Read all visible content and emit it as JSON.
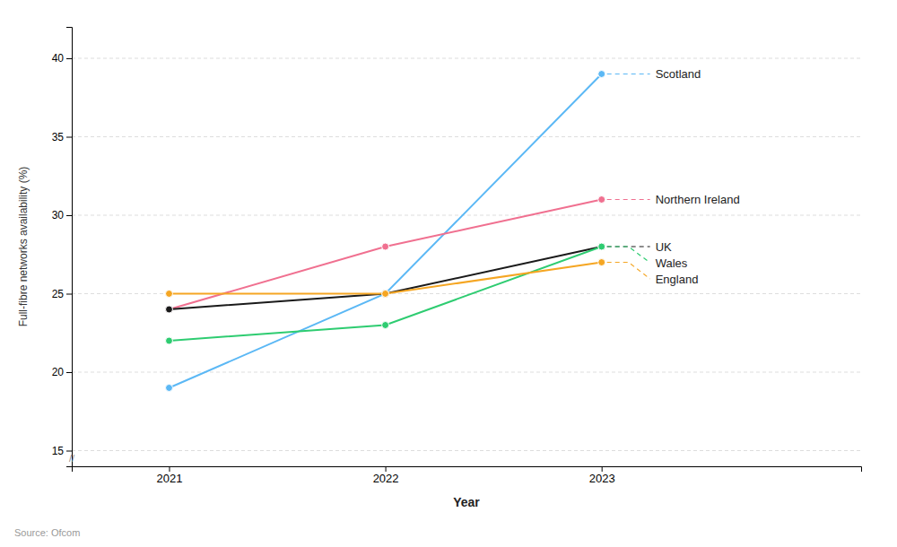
{
  "chart_data": {
    "type": "line",
    "x": [
      2021,
      2022,
      2023
    ],
    "series": [
      {
        "name": "Scotland",
        "color": "#5BB8F5",
        "values": [
          19,
          25,
          39
        ]
      },
      {
        "name": "Northern Ireland",
        "color": "#F07090",
        "values": [
          24,
          28,
          31
        ]
      },
      {
        "name": "UK",
        "color": "#1A1A1A",
        "values": [
          24,
          25,
          28
        ]
      },
      {
        "name": "Wales",
        "color": "#2ECC71",
        "values": [
          22,
          23,
          28
        ]
      },
      {
        "name": "England",
        "color": "#F5A623",
        "values": [
          25,
          25,
          27
        ]
      }
    ],
    "xlabel": "Year",
    "ylabel": "Full-fibre networks availability (%)",
    "xlim": [
      2020.55,
      2024.2
    ],
    "xticks": [
      2021,
      2022,
      2023
    ],
    "ylim": [
      14.0,
      42.0
    ],
    "yticks": [
      15,
      20,
      25,
      30,
      35,
      40
    ],
    "grid": true,
    "marker": "circle",
    "annotations": [
      "//",
      "Source: Ofcom"
    ]
  }
}
